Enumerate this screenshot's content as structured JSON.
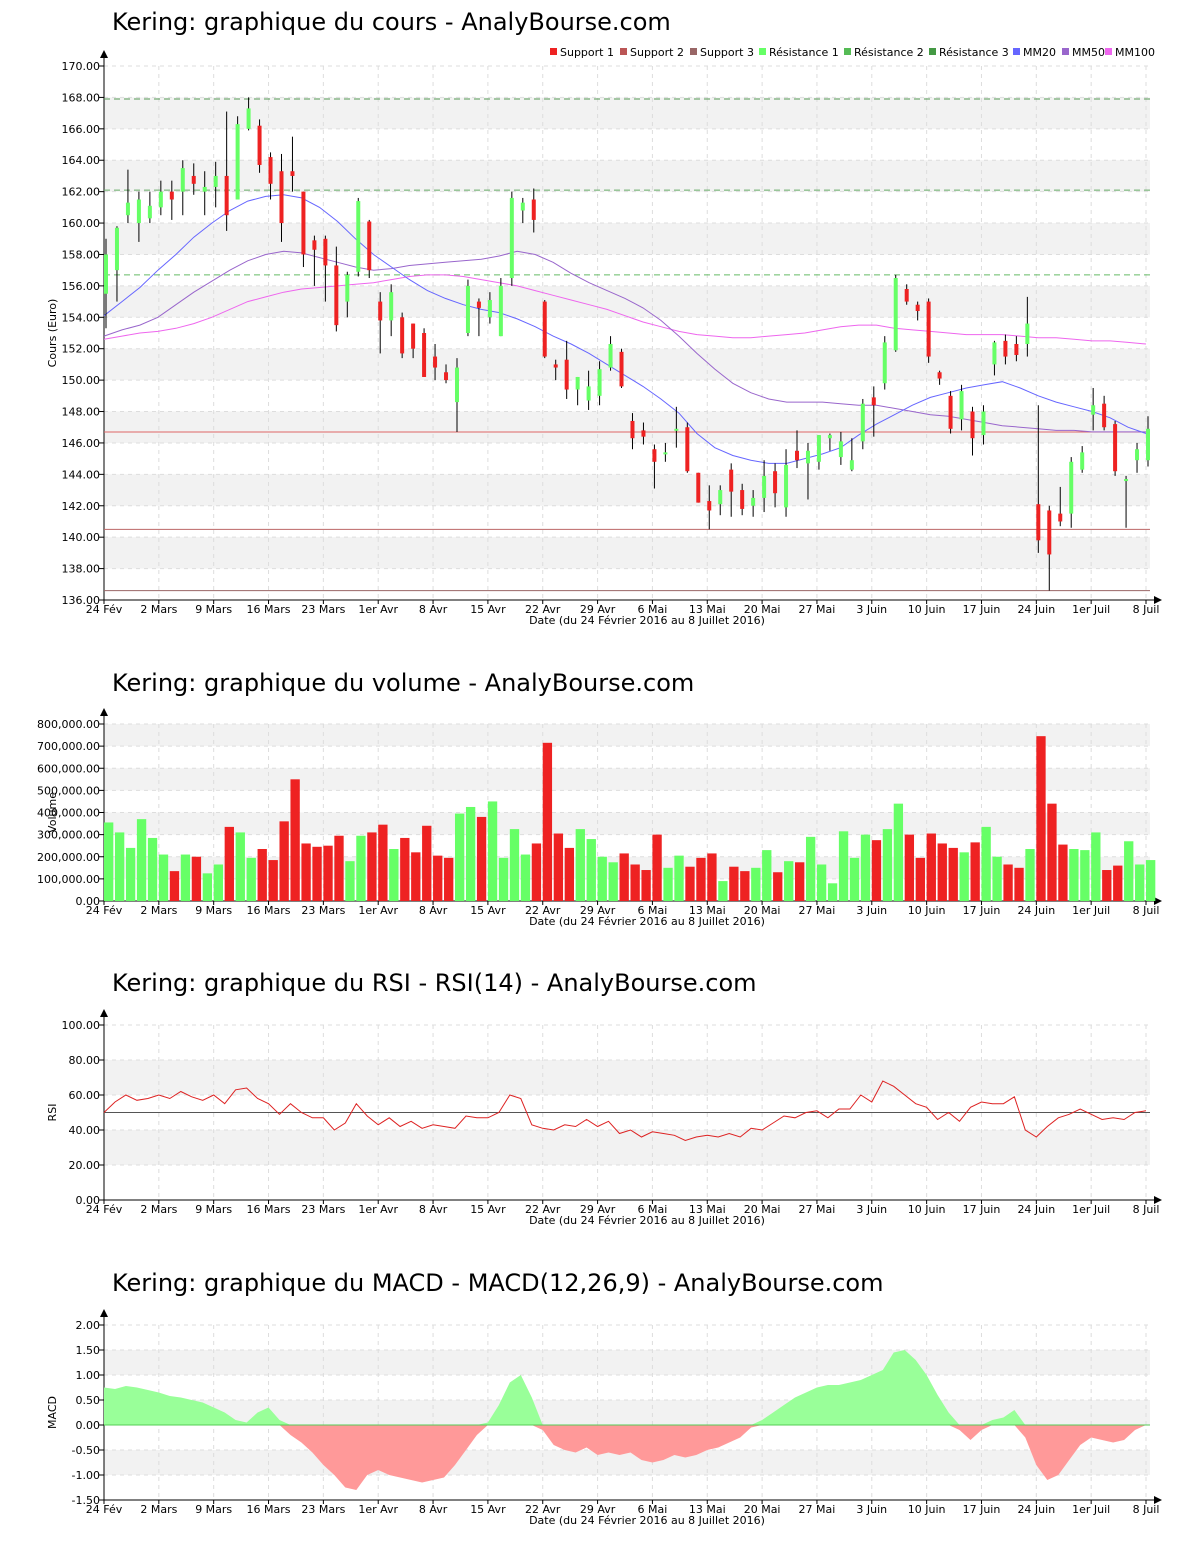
{
  "dates_ticks": [
    "24 Fév",
    "2 Mars",
    "9 Mars",
    "16 Mars",
    "23 Mars",
    "1er Avr",
    "8 Avr",
    "15 Avr",
    "22 Avr",
    "29 Avr",
    "6 Mai",
    "13 Mai",
    "20 Mai",
    "27 Mai",
    "3 Juin",
    "10 Juin",
    "17 Juin",
    "24 Juin",
    "1er Juil",
    "8 Juil"
  ],
  "xlabel": "Date (du 24 Février 2016 au 8 Juillet 2016)",
  "colors": {
    "up": "#66ff66",
    "down": "#ee2222",
    "mm20": "#6666ff",
    "mm50": "#9966cc",
    "mm100": "#ee66ee",
    "support": "#dd6666",
    "resistance": "#66bb66"
  },
  "chart_data": [
    {
      "type": "candlestick",
      "title": "Kering: graphique du cours - AnalyBourse.com",
      "ylabel": "Cours (Euro)",
      "ylim": [
        136,
        170
      ],
      "yticks": [
        "136.00",
        "138.00",
        "140.00",
        "142.00",
        "144.00",
        "146.00",
        "148.00",
        "150.00",
        "152.00",
        "154.00",
        "156.00",
        "158.00",
        "160.00",
        "162.00",
        "164.00",
        "166.00",
        "168.00",
        "170.00"
      ],
      "legend": [
        "Support 1",
        "Support 2",
        "Support 3",
        "Résistance 1",
        "Résistance 2",
        "Résistance 3",
        "MM20",
        "MM50",
        "MM100"
      ],
      "levels": {
        "support1": 146.7,
        "support2": 140.5,
        "support3": 136.6,
        "resistance1": 156.7,
        "resistance2": 162.1,
        "resistance3": 167.9
      },
      "candles": [
        [
          155.5,
          158.0,
          153.3,
          159.0
        ],
        [
          157.0,
          159.7,
          155.0,
          159.8
        ],
        [
          160.5,
          161.3,
          160.0,
          163.4
        ],
        [
          160.0,
          161.5,
          158.8,
          162.0
        ],
        [
          160.3,
          161.1,
          160.0,
          162.0
        ],
        [
          161.0,
          162.0,
          160.5,
          162.7
        ],
        [
          162.0,
          161.5,
          160.2,
          162.7
        ],
        [
          162.0,
          163.5,
          160.5,
          164.0
        ],
        [
          163.0,
          162.5,
          161.8,
          163.8
        ],
        [
          162.0,
          162.3,
          160.5,
          163.3
        ],
        [
          162.3,
          163.0,
          161.0,
          163.9
        ],
        [
          163.0,
          160.5,
          159.5,
          167.1
        ],
        [
          161.5,
          166.3,
          161.5,
          166.8
        ],
        [
          166.0,
          167.3,
          165.9,
          168.0
        ],
        [
          166.2,
          163.7,
          163.2,
          166.6
        ],
        [
          164.2,
          162.5,
          161.5,
          164.5
        ],
        [
          163.3,
          160.0,
          158.8,
          164.4
        ],
        [
          163.3,
          163.0,
          162.0,
          165.5
        ],
        [
          162.0,
          158.0,
          157.2,
          162.0
        ],
        [
          158.9,
          158.3,
          156.0,
          159.2
        ],
        [
          159.0,
          157.3,
          155.0,
          159.2
        ],
        [
          157.3,
          153.5,
          153.1,
          158.5
        ],
        [
          155.0,
          156.7,
          154.0,
          156.9
        ],
        [
          156.9,
          161.4,
          156.6,
          161.6
        ],
        [
          160.1,
          157.0,
          156.5,
          160.2
        ],
        [
          155.0,
          153.8,
          151.7,
          155.6
        ],
        [
          153.8,
          155.6,
          152.8,
          156.1
        ],
        [
          154.0,
          151.7,
          151.4,
          154.3
        ],
        [
          153.6,
          152.0,
          151.4,
          153.6
        ],
        [
          153.0,
          150.2,
          150.2,
          153.3
        ],
        [
          151.5,
          150.8,
          150.0,
          152.3
        ],
        [
          150.5,
          150.0,
          149.8,
          151.0
        ],
        [
          148.6,
          150.8,
          146.7,
          151.4
        ],
        [
          153.0,
          156.0,
          152.8,
          156.4
        ],
        [
          155.0,
          154.6,
          152.8,
          155.2
        ],
        [
          154.0,
          155.1,
          153.6,
          155.6
        ],
        [
          152.8,
          156.0,
          152.8,
          156.5
        ],
        [
          156.5,
          161.6,
          156.0,
          162.0
        ],
        [
          160.8,
          161.3,
          160.0,
          161.6
        ],
        [
          161.5,
          160.2,
          159.4,
          162.2
        ],
        [
          155.0,
          151.5,
          151.4,
          155.1
        ],
        [
          151.0,
          150.8,
          150.0,
          151.3
        ],
        [
          151.3,
          149.4,
          148.8,
          152.5
        ],
        [
          149.4,
          150.2,
          148.4,
          150.2
        ],
        [
          148.7,
          149.6,
          148.1,
          150.6
        ],
        [
          149.0,
          150.7,
          148.4,
          151.2
        ],
        [
          150.8,
          152.3,
          150.6,
          152.8
        ],
        [
          151.8,
          149.6,
          149.5,
          152.0
        ],
        [
          147.4,
          146.3,
          145.6,
          147.9
        ],
        [
          146.8,
          146.4,
          145.9,
          147.3
        ],
        [
          145.6,
          144.8,
          143.1,
          145.9
        ],
        [
          145.3,
          145.4,
          144.8,
          146.0
        ],
        [
          146.8,
          146.9,
          145.7,
          148.3
        ],
        [
          147.0,
          144.2,
          144.1,
          147.3
        ],
        [
          144.1,
          142.2,
          142.2,
          144.1
        ],
        [
          142.3,
          141.7,
          140.5,
          143.3
        ],
        [
          142.1,
          143.0,
          141.4,
          143.3
        ],
        [
          144.3,
          142.9,
          141.3,
          144.7
        ],
        [
          143.0,
          141.8,
          141.4,
          143.4
        ],
        [
          142.0,
          142.5,
          141.3,
          143.0
        ],
        [
          142.5,
          143.9,
          141.6,
          144.9
        ],
        [
          144.2,
          142.8,
          141.9,
          144.7
        ],
        [
          141.9,
          144.6,
          141.3,
          145.6
        ],
        [
          145.5,
          144.9,
          144.4,
          146.8
        ],
        [
          144.7,
          145.5,
          142.4,
          146.0
        ],
        [
          144.8,
          146.5,
          144.3,
          146.5
        ],
        [
          146.3,
          146.5,
          145.5,
          146.6
        ],
        [
          145.1,
          146.1,
          144.6,
          146.7
        ],
        [
          144.3,
          144.9,
          144.2,
          146.3
        ],
        [
          146.1,
          148.5,
          145.6,
          148.8
        ],
        [
          148.9,
          148.4,
          146.4,
          149.6
        ],
        [
          149.8,
          152.4,
          149.4,
          152.8
        ],
        [
          151.9,
          156.5,
          151.8,
          156.7
        ],
        [
          155.8,
          155.0,
          154.8,
          156.1
        ],
        [
          154.8,
          154.4,
          153.8,
          155.0
        ],
        [
          155.0,
          151.5,
          151.1,
          155.2
        ],
        [
          150.5,
          150.1,
          149.7,
          150.6
        ],
        [
          149.0,
          146.9,
          146.6,
          149.3
        ],
        [
          147.5,
          149.3,
          146.8,
          149.7
        ],
        [
          148.0,
          146.3,
          145.2,
          148.3
        ],
        [
          146.5,
          148.0,
          145.9,
          148.4
        ],
        [
          151.0,
          152.4,
          150.3,
          152.5
        ],
        [
          152.5,
          151.5,
          151.0,
          152.9
        ],
        [
          152.3,
          151.6,
          151.2,
          152.8
        ],
        [
          152.3,
          153.6,
          151.5,
          155.3
        ],
        [
          142.1,
          139.8,
          139.0,
          148.4
        ],
        [
          141.7,
          138.9,
          136.6,
          142.0
        ],
        [
          141.5,
          141.0,
          140.7,
          143.2
        ],
        [
          141.5,
          144.8,
          140.6,
          145.1
        ],
        [
          144.3,
          145.4,
          144.1,
          145.8
        ],
        [
          147.8,
          148.4,
          146.8,
          149.5
        ],
        [
          148.5,
          147.0,
          146.8,
          149.0
        ],
        [
          147.2,
          144.2,
          143.9,
          147.4
        ],
        [
          143.6,
          143.7,
          140.6,
          143.9
        ],
        [
          144.9,
          145.6,
          144.1,
          146.0
        ],
        [
          144.9,
          146.9,
          144.5,
          147.7
        ]
      ],
      "mm20": [
        154.1,
        155.0,
        155.9,
        157.0,
        158.0,
        159.1,
        160.0,
        160.8,
        161.4,
        161.7,
        161.8,
        161.6,
        161.0,
        160.1,
        159.0,
        158.0,
        157.2,
        156.4,
        155.7,
        155.2,
        154.8,
        154.5,
        154.3,
        153.9,
        153.4,
        152.8,
        152.3,
        151.7,
        151.0,
        150.3,
        149.6,
        148.8,
        147.9,
        146.6,
        145.7,
        145.2,
        144.9,
        144.7,
        144.7,
        145.0,
        145.3,
        145.7,
        146.5,
        147.2,
        147.8,
        148.4,
        148.9,
        149.2,
        149.5,
        149.7,
        149.9,
        149.5,
        149.0,
        148.6,
        148.3,
        148.0,
        147.6,
        147.0,
        146.6
      ],
      "mm50": [
        152.8,
        153.2,
        153.5,
        154.0,
        154.8,
        155.6,
        156.3,
        157.0,
        157.6,
        158.0,
        158.2,
        158.1,
        157.8,
        157.5,
        157.2,
        157.0,
        157.1,
        157.3,
        157.4,
        157.5,
        157.6,
        157.7,
        157.9,
        158.2,
        158.0,
        157.5,
        156.8,
        156.2,
        155.7,
        155.2,
        154.6,
        153.8,
        152.8,
        151.7,
        150.7,
        149.8,
        149.2,
        148.8,
        148.6,
        148.6,
        148.6,
        148.5,
        148.4,
        148.4,
        148.2,
        148.0,
        147.8,
        147.7,
        147.5,
        147.3,
        147.1,
        147.0,
        146.9,
        146.8,
        146.8,
        146.7,
        146.7,
        146.7,
        146.7
      ],
      "mm100": [
        152.6,
        152.8,
        153.0,
        153.1,
        153.3,
        153.6,
        154.0,
        154.5,
        155.0,
        155.3,
        155.6,
        155.8,
        155.9,
        156.0,
        156.1,
        156.2,
        156.4,
        156.6,
        156.7,
        156.7,
        156.6,
        156.4,
        156.2,
        156.0,
        155.7,
        155.4,
        155.1,
        154.8,
        154.5,
        154.1,
        153.7,
        153.4,
        153.1,
        152.9,
        152.8,
        152.7,
        152.7,
        152.8,
        152.9,
        153.0,
        153.2,
        153.4,
        153.5,
        153.5,
        153.3,
        153.2,
        153.1,
        153.0,
        152.9,
        152.9,
        152.9,
        152.8,
        152.7,
        152.7,
        152.6,
        152.5,
        152.5,
        152.4,
        152.3
      ]
    },
    {
      "type": "bar",
      "title": "Kering: graphique du volume - AnalyBourse.com",
      "ylabel": "Volume",
      "ylim": [
        0,
        800000
      ],
      "yticks": [
        "0.00",
        "100,000.00",
        "200,000.00",
        "300,000.00",
        "400,000.00",
        "500,000.00",
        "600,000.00",
        "700,000.00",
        "800,000.00"
      ],
      "values": [
        355000,
        310000,
        240000,
        370000,
        285000,
        210000,
        135000,
        210000,
        200000,
        125000,
        165000,
        335000,
        310000,
        195000,
        235000,
        185000,
        360000,
        550000,
        260000,
        245000,
        250000,
        295000,
        180000,
        295000,
        310000,
        345000,
        235000,
        285000,
        220000,
        340000,
        205000,
        195000,
        395000,
        425000,
        380000,
        450000,
        195000,
        325000,
        210000,
        260000,
        715000,
        305000,
        240000,
        325000,
        280000,
        200000,
        175000,
        215000,
        165000,
        140000,
        300000,
        150000,
        205000,
        155000,
        195000,
        215000,
        90000,
        155000,
        135000,
        150000,
        230000,
        130000,
        180000,
        175000,
        290000,
        165000,
        80000,
        315000,
        195000,
        300000,
        275000,
        325000,
        440000,
        300000,
        195000,
        305000,
        260000,
        240000,
        220000,
        265000,
        335000,
        200000,
        165000,
        150000,
        235000,
        745000,
        440000,
        255000,
        235000,
        230000,
        310000,
        140000,
        160000,
        270000,
        165000,
        185000
      ]
    },
    {
      "type": "line",
      "title": "Kering: graphique du RSI - RSI(14) - AnalyBourse.com",
      "ylabel": "RSI",
      "ylim": [
        0,
        100
      ],
      "yticks": [
        "0.00",
        "20.00",
        "40.00",
        "60.00",
        "80.00",
        "100.00"
      ],
      "reference": 50,
      "values": [
        50,
        56,
        60,
        57,
        58,
        60,
        58,
        62,
        59,
        57,
        60,
        55,
        63,
        64,
        58,
        55,
        49,
        55,
        50,
        47,
        47,
        40,
        44,
        55,
        48,
        43,
        47,
        42,
        45,
        41,
        43,
        42,
        41,
        48,
        47,
        47,
        50,
        60,
        58,
        43,
        41,
        40,
        43,
        42,
        46,
        42,
        45,
        38,
        40,
        36,
        39,
        38,
        37,
        34,
        36,
        37,
        36,
        38,
        36,
        41,
        40,
        44,
        48,
        47,
        50,
        51,
        47,
        52,
        52,
        60,
        56,
        68,
        65,
        60,
        55,
        53,
        46,
        50,
        45,
        53,
        56,
        55,
        55,
        59,
        40,
        36,
        42,
        47,
        49,
        52,
        49,
        46,
        47,
        46,
        50,
        51
      ]
    },
    {
      "type": "area",
      "title": "Kering: graphique du MACD - MACD(12,26,9) - AnalyBourse.com",
      "ylabel": "MACD",
      "ylim": [
        -1.5,
        2.0
      ],
      "yticks": [
        "-1.50",
        "-1.00",
        "-0.50",
        "0.00",
        "0.50",
        "1.00",
        "1.50",
        "2.00"
      ],
      "values": [
        0.75,
        0.72,
        0.78,
        0.75,
        0.7,
        0.65,
        0.58,
        0.55,
        0.5,
        0.45,
        0.35,
        0.25,
        0.1,
        0.05,
        0.25,
        0.35,
        0.1,
        -0.2,
        -0.35,
        -0.55,
        -0.8,
        -1.0,
        -1.25,
        -1.3,
        -1.0,
        -0.9,
        -1.0,
        -1.05,
        -1.1,
        -1.15,
        -1.1,
        -1.05,
        -0.8,
        -0.5,
        -0.2,
        0.05,
        0.4,
        0.85,
        1.0,
        0.55,
        -0.1,
        -0.4,
        -0.5,
        -0.55,
        -0.45,
        -0.6,
        -0.55,
        -0.6,
        -0.55,
        -0.7,
        -0.75,
        -0.7,
        -0.6,
        -0.65,
        -0.6,
        -0.5,
        -0.45,
        -0.35,
        -0.25,
        -0.05,
        0.1,
        0.25,
        0.4,
        0.55,
        0.65,
        0.75,
        0.8,
        0.8,
        0.85,
        0.9,
        1.0,
        1.1,
        1.45,
        1.5,
        1.3,
        1.0,
        0.6,
        0.25,
        -0.1,
        -0.3,
        -0.1,
        0.1,
        0.15,
        0.3,
        -0.25,
        -0.8,
        -1.1,
        -1.0,
        -0.7,
        -0.4,
        -0.25,
        -0.3,
        -0.35,
        -0.3,
        -0.1,
        0.0
      ]
    }
  ]
}
